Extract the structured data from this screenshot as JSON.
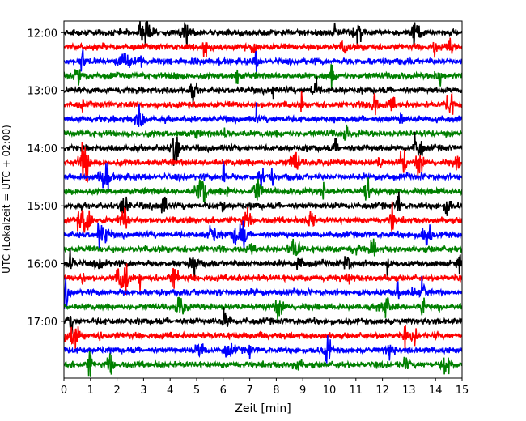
{
  "chart_data": {
    "type": "line",
    "title": "",
    "subtitle": "",
    "xlabel": "Zeit  [min]",
    "ylabel": "UTC (Lokalzeit = UTC + 02:00)",
    "xlim": [
      0,
      15
    ],
    "xticks": [
      0,
      1,
      2,
      3,
      4,
      5,
      6,
      7,
      8,
      9,
      10,
      11,
      12,
      13,
      14,
      15
    ],
    "xtick_labels": [
      "0",
      "1",
      "2",
      "3",
      "4",
      "5",
      "6",
      "7",
      "8",
      "9",
      "10",
      "11",
      "12",
      "13",
      "14",
      "15"
    ],
    "ylim": [
      "11:48",
      "17:59"
    ],
    "yticks": [
      "12:00",
      "13:00",
      "14:00",
      "15:00",
      "16:00",
      "17:00"
    ],
    "ytick_labels": [
      "12:00",
      "13:00",
      "14:00",
      "15:00",
      "16:00",
      "17:00"
    ],
    "row_interval_minutes": 15,
    "row_colors": [
      "#000000",
      "#ff0000",
      "#0000ff",
      "#008000"
    ],
    "rows": [
      "12:00",
      "12:15",
      "12:30",
      "12:45",
      "13:00",
      "13:15",
      "13:30",
      "13:45",
      "14:00",
      "14:15",
      "14:30",
      "14:45",
      "15:00",
      "15:15",
      "15:30",
      "15:45",
      "16:00",
      "16:15",
      "16:30",
      "16:45",
      "17:00",
      "17:15",
      "17:30",
      "17:45"
    ],
    "grid": false,
    "legend": "none"
  }
}
